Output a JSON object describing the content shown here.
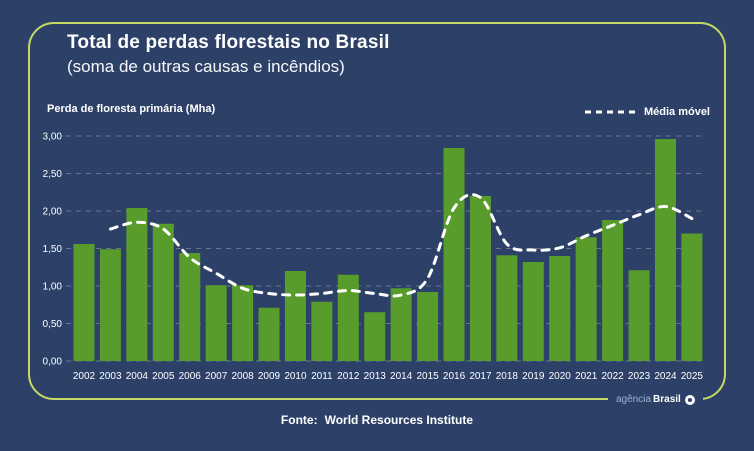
{
  "header": {
    "title": "Total de perdas florestais no Brasil",
    "subtitle": "(soma de outras causas e incêndios)"
  },
  "axis": {
    "y_label": "Perda de floresta primária (Mha)"
  },
  "legend": {
    "moving_average_label": "Média móvel"
  },
  "footer": {
    "source_label": "Fonte:",
    "source_value": "World Resources Institute"
  },
  "logo": {
    "prefix": "agência",
    "name": "Brasil",
    "icon": "ring-icon"
  },
  "colors": {
    "background": "#2d4168",
    "card_border": "#c6d965",
    "bar": "#589c2b",
    "text": "#ffffff",
    "grid": "rgba(255,255,255,0.28)",
    "moving_average_line": "#ffffff",
    "logo_prefix": "#9db1d6"
  },
  "chart_data": {
    "type": "bar",
    "title": "Total de perdas florestais no Brasil (soma de outras causas e incêndios)",
    "xlabel": "",
    "ylabel": "Perda de floresta primária (Mha)",
    "ylim": [
      0,
      3.0
    ],
    "ytick_step": 0.5,
    "ytick_labels": [
      "0,00",
      "0,50",
      "1,00",
      "1,50",
      "2,00",
      "2,50",
      "3,00"
    ],
    "grid": "horizontal-dashed",
    "legend_position": "top-right",
    "categories": [
      2002,
      2003,
      2004,
      2005,
      2006,
      2007,
      2008,
      2009,
      2010,
      2011,
      2012,
      2013,
      2014,
      2015,
      2016,
      2017,
      2018,
      2019,
      2020,
      2021,
      2022,
      2023,
      2024,
      2025
    ],
    "series": [
      {
        "name": "Perda de floresta primária (Mha)",
        "type": "bar",
        "values": [
          1.56,
          1.49,
          2.04,
          1.83,
          1.44,
          1.01,
          1.01,
          0.71,
          1.2,
          0.79,
          1.15,
          0.65,
          0.97,
          0.92,
          2.84,
          2.2,
          1.41,
          1.32,
          1.4,
          1.65,
          1.88,
          1.21,
          2.96,
          1.7
        ]
      },
      {
        "name": "Média móvel",
        "type": "dashed-line",
        "values": [
          null,
          1.76,
          1.85,
          1.76,
          1.38,
          1.17,
          0.97,
          0.9,
          0.88,
          0.9,
          0.94,
          0.9,
          0.88,
          1.1,
          2.04,
          2.18,
          1.56,
          1.48,
          1.51,
          1.67,
          1.81,
          1.95,
          2.06,
          1.9
        ]
      }
    ]
  }
}
